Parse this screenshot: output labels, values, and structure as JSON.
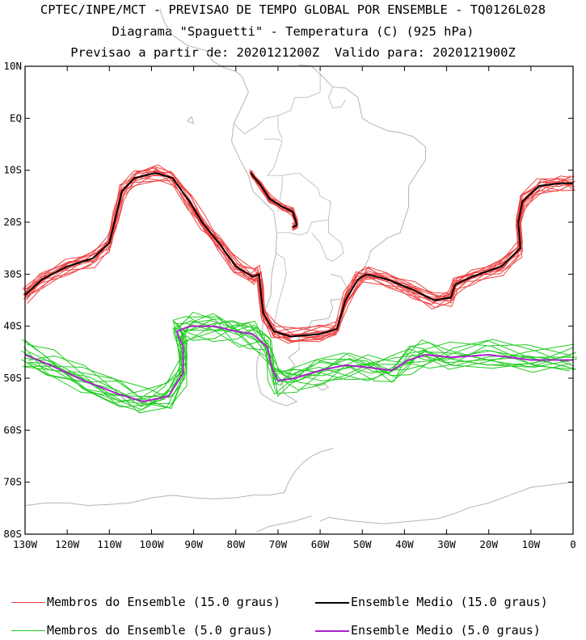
{
  "header": {
    "line1": "CPTEC/INPE/MCT - PREVISAO DE TEMPO GLOBAL POR ENSEMBLE - TQ0126L028",
    "line2": "Diagrama \"Spaguetti\" - Temperatura (C) (925 hPa)",
    "line3": "Previsao a partir de: 2020121200Z  Valido para: 2020121900Z"
  },
  "map": {
    "lat_range": [
      -80,
      10
    ],
    "lon_range": [
      -130,
      0
    ],
    "lat_labels": [
      "10N",
      "EQ",
      "10S",
      "20S",
      "30S",
      "40S",
      "50S",
      "60S",
      "70S",
      "80S"
    ],
    "lat_values": [
      10,
      0,
      -10,
      -20,
      -30,
      -40,
      -50,
      -60,
      -70,
      -80
    ],
    "lon_labels": [
      "130W",
      "120W",
      "110W",
      "100W",
      "90W",
      "80W",
      "70W",
      "60W",
      "50W",
      "40W",
      "30W",
      "20W",
      "10W",
      "0"
    ],
    "lon_values": [
      -130,
      -120,
      -110,
      -100,
      -90,
      -80,
      -70,
      -60,
      -50,
      -40,
      -30,
      -20,
      -10,
      0
    ],
    "coast_color": "#b4b4b4",
    "warm_member_color": "#ee4444",
    "warm_mean_color": "#000000",
    "cold_member_color": "#22cc22",
    "cold_mean_color": "#aa22cc",
    "mean_15": [
      [
        -130,
        -34
      ],
      [
        -126,
        -31
      ],
      [
        -120,
        -28.5
      ],
      [
        -114,
        -27
      ],
      [
        -110,
        -24
      ],
      [
        -108.5,
        -19
      ],
      [
        -107,
        -14
      ],
      [
        -104,
        -11.5
      ],
      [
        -99,
        -10.5
      ],
      [
        -95,
        -11.5
      ],
      [
        -91,
        -16
      ],
      [
        -88,
        -20
      ],
      [
        -84,
        -24
      ],
      [
        -80,
        -28.5
      ],
      [
        -76,
        -30.5
      ],
      [
        -74.5,
        -30
      ],
      [
        -74,
        -34
      ],
      [
        -73.5,
        -37.5
      ],
      [
        -71,
        -41
      ],
      [
        -67,
        -42
      ],
      [
        -60,
        -41.5
      ],
      [
        -56,
        -40.5
      ],
      [
        -54,
        -35
      ],
      [
        -51,
        -31
      ],
      [
        -49,
        -30
      ],
      [
        -44,
        -31
      ],
      [
        -38,
        -33
      ],
      [
        -33,
        -35
      ],
      [
        -29,
        -34.5
      ],
      [
        -28,
        -32
      ],
      [
        -24,
        -30.5
      ],
      [
        -17,
        -28.5
      ],
      [
        -12.5,
        -25
      ],
      [
        -13,
        -20
      ],
      [
        -12,
        -16
      ],
      [
        -8,
        -13
      ],
      [
        -3,
        -12.5
      ],
      [
        0,
        -12.5
      ]
    ],
    "mean_15_inland": [
      [
        -76.5,
        -10.5
      ],
      [
        -74,
        -13
      ],
      [
        -72,
        -15.5
      ],
      [
        -69,
        -17
      ],
      [
        -66.5,
        -18
      ],
      [
        -65.5,
        -20.5
      ],
      [
        -66.5,
        -21
      ]
    ],
    "mean_5": [
      [
        -130,
        -45.5
      ],
      [
        -124,
        -47.5
      ],
      [
        -116,
        -50.5
      ],
      [
        -108,
        -53
      ],
      [
        -102,
        -54.5
      ],
      [
        -96,
        -53.5
      ],
      [
        -92.5,
        -49
      ],
      [
        -92.5,
        -44
      ],
      [
        -94,
        -41
      ],
      [
        -91,
        -40
      ],
      [
        -85,
        -40
      ],
      [
        -80,
        -41
      ],
      [
        -76,
        -41.5
      ],
      [
        -72.5,
        -44
      ],
      [
        -71.5,
        -48
      ],
      [
        -70,
        -50.5
      ],
      [
        -66,
        -50
      ],
      [
        -60,
        -48.5
      ],
      [
        -54,
        -47.5
      ],
      [
        -48,
        -48
      ],
      [
        -43,
        -48.5
      ],
      [
        -39,
        -46.5
      ],
      [
        -35,
        -45.5
      ],
      [
        -29,
        -46
      ],
      [
        -20,
        -45.5
      ],
      [
        -10,
        -46.5
      ],
      [
        0,
        -46.5
      ]
    ]
  },
  "legend": {
    "members_15": "Membros do Ensemble (15.0 graus)",
    "mean_15": "Ensemble Medio (15.0 graus)",
    "members_5": "Membros do Ensemble (5.0 graus)",
    "mean_5": "Ensemble Medio (5.0 graus)"
  }
}
